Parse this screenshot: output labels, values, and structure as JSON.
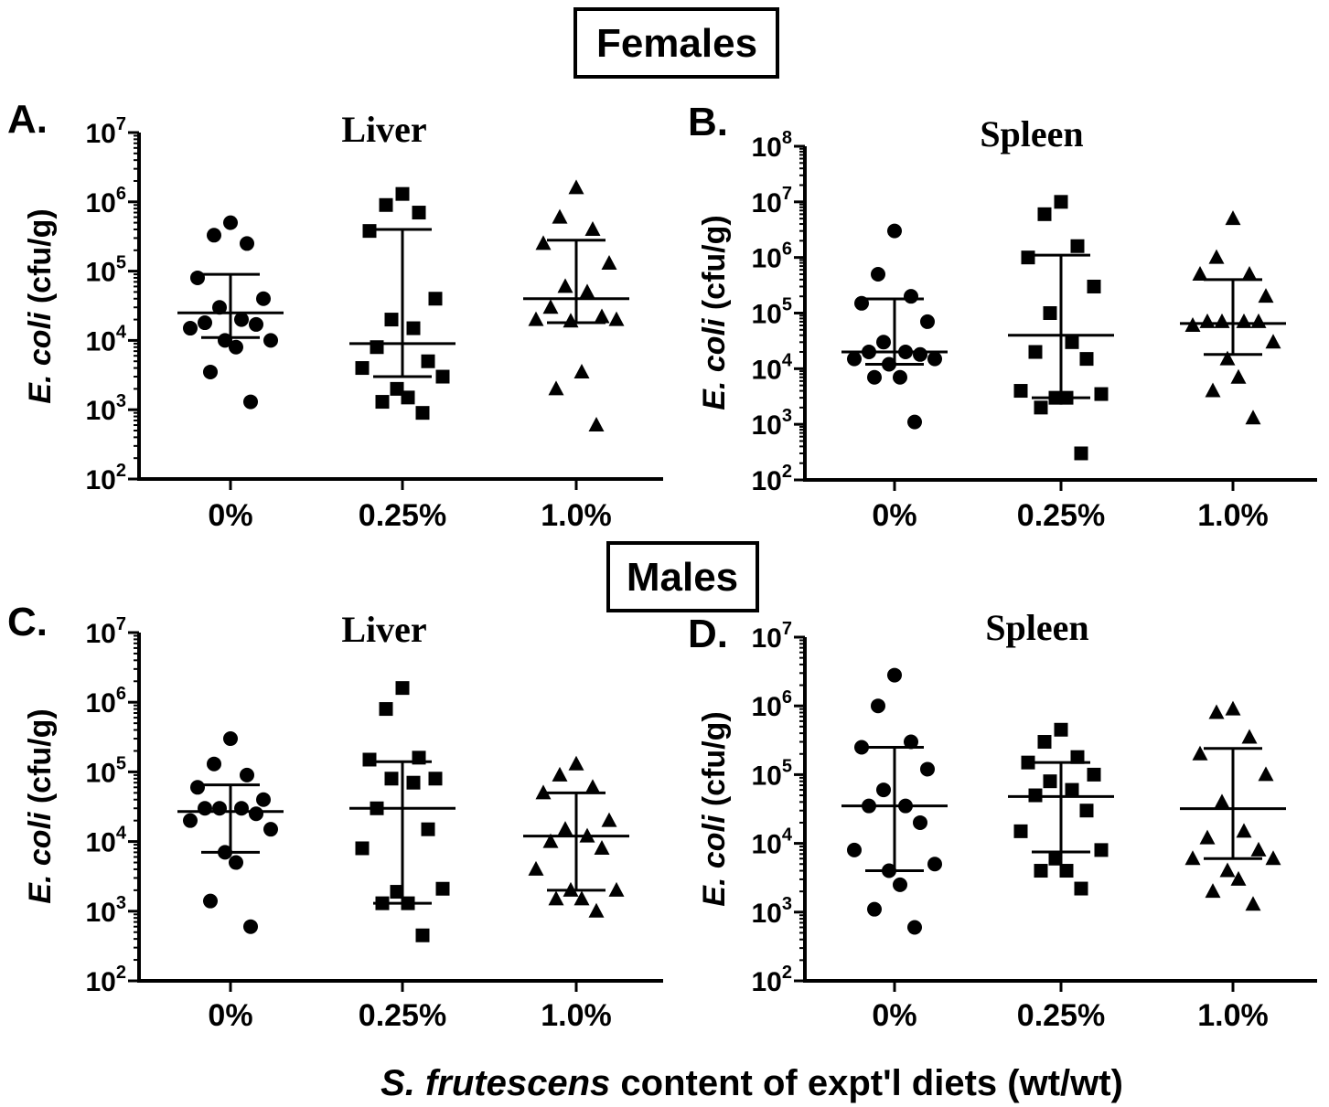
{
  "groups": [
    {
      "label": "Females"
    },
    {
      "label": "Males"
    }
  ],
  "xlabel_italic": "S. frutescens",
  "xlabel_rest": " content of expt'l diets (wt/wt)",
  "ylabel_italic": "E. coli",
  "ylabel_rest": " (cfu/g)",
  "chart_data": [
    {
      "type": "scatter",
      "panel": "A.",
      "group": "Females",
      "title": "Liver",
      "categories": [
        "0%",
        "0.25%",
        "1.0%"
      ],
      "y_scale": "log10",
      "ylim": [
        100,
        10000000
      ],
      "y_ticks": [
        100,
        1000,
        10000,
        100000,
        1000000,
        10000000
      ],
      "series": [
        {
          "category": "0%",
          "marker": "circle",
          "values": [
            500000,
            330000,
            250000,
            80000,
            40000,
            30000,
            20000,
            18000,
            17000,
            15000,
            10000,
            10000,
            8000,
            3500,
            1300
          ],
          "median": 25000,
          "q1": 11000,
          "q3": 90000
        },
        {
          "category": "0.25%",
          "marker": "square",
          "values": [
            1300000,
            900000,
            700000,
            380000,
            40000,
            20000,
            15000,
            8000,
            5000,
            4000,
            3000,
            2000,
            1500,
            1300,
            900
          ],
          "median": 9000,
          "q1": 3000,
          "q3": 400000
        },
        {
          "category": "1.0%",
          "marker": "triangle",
          "values": [
            1600000,
            600000,
            400000,
            250000,
            130000,
            60000,
            50000,
            30000,
            22000,
            20000,
            20000,
            19000,
            3500,
            2000,
            600
          ],
          "median": 40000,
          "q1": 18000,
          "q3": 280000
        }
      ]
    },
    {
      "type": "scatter",
      "panel": "B.",
      "group": "Females",
      "title": "Spleen",
      "categories": [
        "0%",
        "0.25%",
        "1.0%"
      ],
      "y_scale": "log10",
      "ylim": [
        100,
        100000000
      ],
      "y_ticks": [
        100,
        1000,
        10000,
        100000,
        1000000,
        10000000,
        100000000
      ],
      "series": [
        {
          "category": "0%",
          "marker": "circle",
          "values": [
            3000000,
            500000,
            200000,
            150000,
            70000,
            30000,
            20000,
            20000,
            18000,
            15000,
            15000,
            12000,
            7000,
            7000,
            1100
          ],
          "median": 20000,
          "q1": 12000,
          "q3": 180000
        },
        {
          "category": "0.25%",
          "marker": "square",
          "values": [
            10000000,
            6000000,
            1600000,
            1000000,
            300000,
            100000,
            30000,
            20000,
            15000,
            4000,
            3500,
            3000,
            3000,
            2000,
            300
          ],
          "median": 40000,
          "q1": 3000,
          "q3": 1100000
        },
        {
          "category": "1.0%",
          "marker": "triangle",
          "values": [
            5000000,
            1000000,
            500000,
            500000,
            200000,
            70000,
            70000,
            70000,
            70000,
            60000,
            30000,
            15000,
            7000,
            4000,
            1300
          ],
          "median": 65000,
          "q1": 18000,
          "q3": 400000
        }
      ]
    },
    {
      "type": "scatter",
      "panel": "C.",
      "group": "Males",
      "title": "Liver",
      "categories": [
        "0%",
        "0.25%",
        "1.0%"
      ],
      "y_scale": "log10",
      "ylim": [
        100,
        10000000
      ],
      "y_ticks": [
        100,
        1000,
        10000,
        100000,
        1000000,
        10000000
      ],
      "series": [
        {
          "category": "0%",
          "marker": "circle",
          "values": [
            300000,
            130000,
            90000,
            60000,
            40000,
            30000,
            30000,
            30000,
            25000,
            20000,
            15000,
            7000,
            5000,
            1400,
            600
          ],
          "median": 27000,
          "q1": 7000,
          "q3": 65000
        },
        {
          "category": "0.25%",
          "marker": "square",
          "values": [
            1600000,
            800000,
            160000,
            150000,
            80000,
            80000,
            70000,
            30000,
            15000,
            8000,
            2100,
            1900,
            1300,
            1300,
            450
          ],
          "median": 30000,
          "q1": 1300,
          "q3": 140000
        },
        {
          "category": "1.0%",
          "marker": "triangle",
          "values": [
            130000,
            90000,
            60000,
            50000,
            20000,
            15000,
            12000,
            10000,
            8000,
            4000,
            2000,
            2000,
            1500,
            1500,
            1000
          ],
          "median": 12000,
          "q1": 2000,
          "q3": 50000
        }
      ]
    },
    {
      "type": "scatter",
      "panel": "D.",
      "group": "Males",
      "title": "Spleen",
      "categories": [
        "0%",
        "0.25%",
        "1.0%"
      ],
      "y_scale": "log10",
      "ylim": [
        100,
        10000000
      ],
      "y_ticks": [
        100,
        1000,
        10000,
        100000,
        1000000,
        10000000
      ],
      "series": [
        {
          "category": "0%",
          "marker": "circle",
          "values": [
            2800000,
            1000000,
            300000,
            250000,
            120000,
            60000,
            35000,
            35000,
            20000,
            8000,
            5000,
            4000,
            2500,
            1100,
            600
          ],
          "median": 35000,
          "q1": 4000,
          "q3": 250000
        },
        {
          "category": "0.25%",
          "marker": "square",
          "values": [
            450000,
            300000,
            180000,
            150000,
            100000,
            80000,
            60000,
            50000,
            30000,
            15000,
            8000,
            6000,
            4000,
            4000,
            2200
          ],
          "median": 48000,
          "q1": 7500,
          "q3": 150000
        },
        {
          "category": "1.0%",
          "marker": "triangle",
          "values": [
            900000,
            800000,
            350000,
            200000,
            100000,
            40000,
            15000,
            12000,
            8000,
            6000,
            6000,
            4000,
            3000,
            2000,
            1300
          ],
          "median": 32000,
          "q1": 6000,
          "q3": 240000
        }
      ]
    }
  ]
}
